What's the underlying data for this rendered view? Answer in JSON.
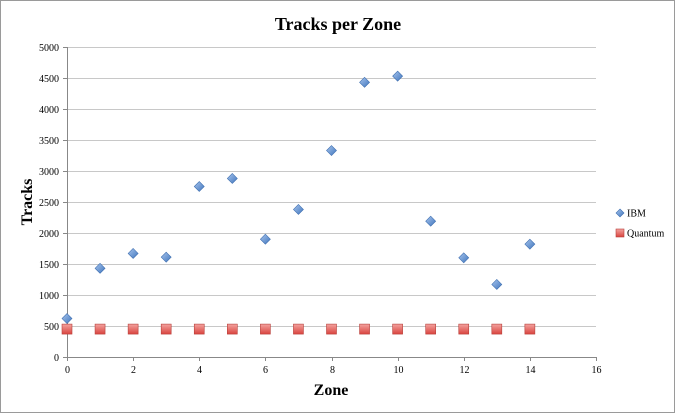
{
  "chart_data": {
    "type": "scatter",
    "title": "Tracks per Zone",
    "xlabel": "Zone",
    "ylabel": "Tracks",
    "xlim": [
      0,
      16
    ],
    "ylim": [
      0,
      5000
    ],
    "xticks": [
      0,
      2,
      4,
      6,
      8,
      10,
      12,
      14,
      16
    ],
    "yticks": [
      0,
      500,
      1000,
      1500,
      2000,
      2500,
      3000,
      3500,
      4000,
      4500,
      5000
    ],
    "grid": "horizontal",
    "legend_position": "right",
    "series": [
      {
        "name": "IBM",
        "marker": "diamond",
        "color": "#5b8fd1",
        "x": [
          0,
          1,
          2,
          3,
          4,
          5,
          6,
          7,
          8,
          9,
          10,
          11,
          12,
          13,
          14
        ],
        "y": [
          620,
          1430,
          1670,
          1610,
          2750,
          2880,
          1900,
          2380,
          3330,
          4430,
          4530,
          2190,
          1600,
          1170,
          1820
        ]
      },
      {
        "name": "Quantum",
        "marker": "square",
        "color": "#e0635e",
        "x": [
          0,
          1,
          2,
          3,
          4,
          5,
          6,
          7,
          8,
          9,
          10,
          11,
          12,
          13,
          14
        ],
        "y": [
          450,
          450,
          450,
          450,
          450,
          450,
          450,
          450,
          450,
          450,
          450,
          450,
          450,
          450,
          450
        ]
      }
    ]
  }
}
